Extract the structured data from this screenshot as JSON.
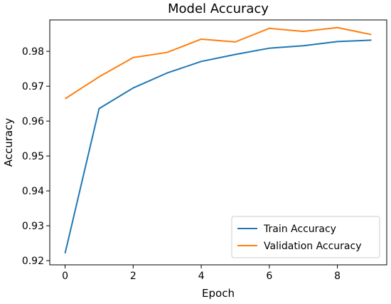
{
  "chart_data": {
    "type": "line",
    "title": "Model Accuracy",
    "xlabel": "Epoch",
    "ylabel": "Accuracy",
    "x": [
      0,
      1,
      2,
      3,
      4,
      5,
      6,
      7,
      8,
      9
    ],
    "xlim": [
      -0.45,
      9.45
    ],
    "ylim": [
      0.9188,
      0.989
    ],
    "xticks": [
      0,
      2,
      4,
      6,
      8
    ],
    "xtick_labels": [
      "0",
      "2",
      "4",
      "6",
      "8"
    ],
    "yticks": [
      0.92,
      0.93,
      0.94,
      0.95,
      0.96,
      0.97,
      0.98
    ],
    "ytick_labels": [
      "0.92",
      "0.93",
      "0.94",
      "0.95",
      "0.96",
      "0.97",
      "0.98"
    ],
    "grid": false,
    "legend_position": "lower right",
    "series": [
      {
        "name": "Train Accuracy",
        "color": "#1f77b4",
        "values": [
          0.9221,
          0.9636,
          0.9695,
          0.9738,
          0.9771,
          0.9791,
          0.9809,
          0.9816,
          0.9828,
          0.9832
        ]
      },
      {
        "name": "Validation Accuracy",
        "color": "#ff7f0e",
        "values": [
          0.9664,
          0.9727,
          0.9782,
          0.9797,
          0.9835,
          0.9827,
          0.9866,
          0.9857,
          0.9868,
          0.9848
        ]
      }
    ]
  }
}
